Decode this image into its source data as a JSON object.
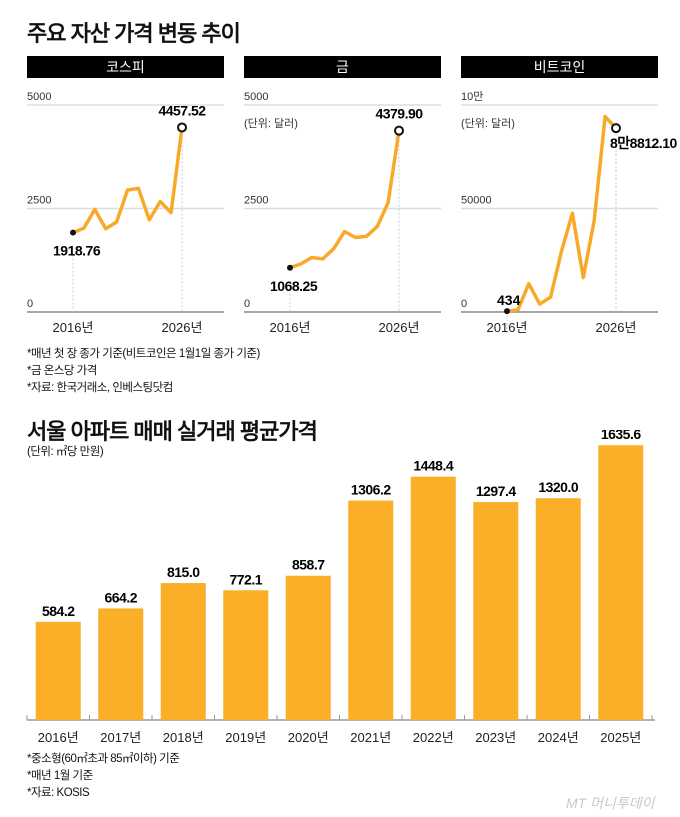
{
  "title": "주요 자산 가격 변동 추이",
  "colors": {
    "line": "#F9A92A",
    "bar": "#FBAE28",
    "grid": "#dddddd",
    "axis": "#888888"
  },
  "chart_data": [
    {
      "type": "line",
      "title": "코스피",
      "unit": "",
      "x": [
        2016,
        2017,
        2018,
        2019,
        2020,
        2021,
        2022,
        2023,
        2024,
        2025,
        2026
      ],
      "values": [
        1918.76,
        2026,
        2479,
        2010,
        2175,
        2944,
        2988,
        2225,
        2669,
        2399,
        4457.52
      ],
      "ylim": [
        0,
        5000
      ],
      "yticks": [
        "0",
        "2500",
        "5000"
      ],
      "xticks": [
        "2016년",
        "2026년"
      ],
      "start_label": "1918.76",
      "end_label": "4457.52",
      "grid": true
    },
    {
      "type": "line",
      "title": "금",
      "unit": "(단위: 달러)",
      "x": [
        2016,
        2017,
        2018,
        2019,
        2020,
        2021,
        2022,
        2023,
        2024,
        2025,
        2026
      ],
      "values": [
        1068.25,
        1162,
        1316,
        1282,
        1527,
        1944,
        1800,
        1826,
        2063,
        2640,
        4379.9
      ],
      "ylim": [
        0,
        5000
      ],
      "yticks": [
        "0",
        "2500",
        "5000"
      ],
      "xticks": [
        "2016년",
        "2026년"
      ],
      "start_label": "1068.25",
      "end_label": "4379.90",
      "grid": true
    },
    {
      "type": "line",
      "title": "비트코인",
      "unit": "(단위: 달러)",
      "x": [
        2016,
        2017,
        2018,
        2019,
        2020,
        2021,
        2022,
        2023,
        2024,
        2025,
        2026
      ],
      "values": [
        434,
        998,
        13657,
        3843,
        7200,
        29374,
        47686,
        16625,
        44179,
        94419,
        88812.1
      ],
      "ylim": [
        0,
        100000
      ],
      "yticks": [
        "0",
        "50000",
        "10만"
      ],
      "xticks": [
        "2016년",
        "2026년"
      ],
      "start_label": "434",
      "end_label": "8만8812.10",
      "grid": true
    },
    {
      "type": "bar",
      "title": "서울 아파트 매매 실거래 평균가격",
      "unit": "(단위: ㎡당 만원)",
      "categories": [
        "2016년",
        "2017년",
        "2018년",
        "2019년",
        "2020년",
        "2021년",
        "2022년",
        "2023년",
        "2024년",
        "2025년"
      ],
      "values": [
        584.2,
        664.2,
        815.0,
        772.1,
        858.7,
        1306.2,
        1448.4,
        1297.4,
        1320.0,
        1635.6
      ],
      "labels": [
        "584.2",
        "664.2",
        "815.0",
        "772.1",
        "858.7",
        "1306.2",
        "1448.4",
        "1297.4",
        "1320.0",
        "1635.6"
      ]
    }
  ],
  "notes_top": [
    "*매년 첫 장 종가 기준(비트코인은 1월1일 종가 기준)",
    "*금 온스당 가격",
    "*자료: 한국거래소, 인베스팅닷컴"
  ],
  "notes_bottom": [
    "*중소형(60㎡초과 85㎡이하) 기준",
    "*매년 1월 기준",
    "*자료: KOSIS"
  ],
  "watermark": "MT 머니투데이"
}
